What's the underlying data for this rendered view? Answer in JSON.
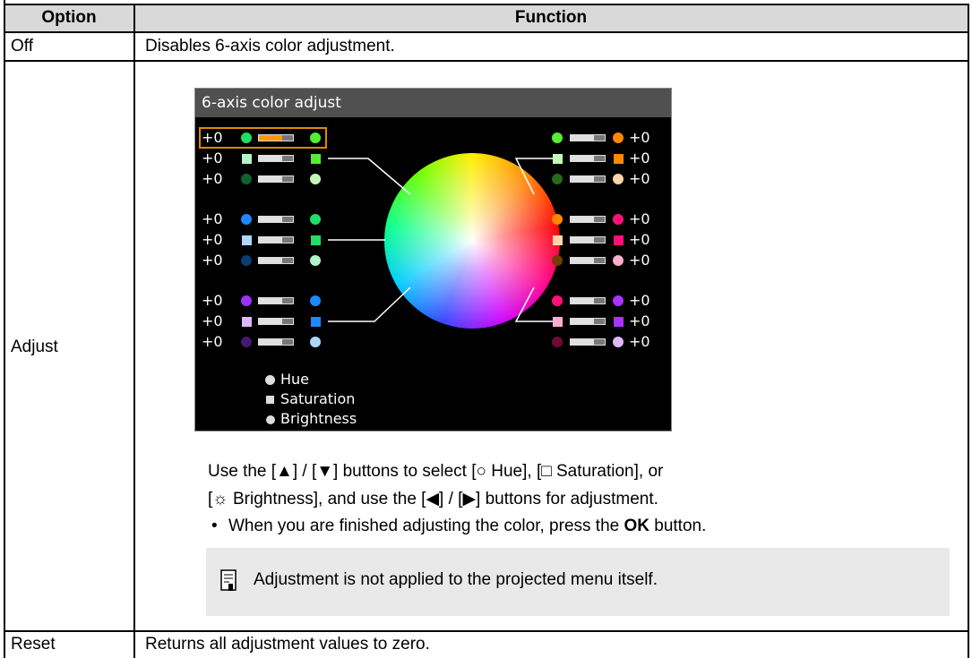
{
  "table": {
    "header": [
      "Option",
      "Function"
    ],
    "rows": [
      {
        "option": "Off",
        "function": "Disables 6-axis color adjustment."
      },
      {
        "option": "Adjust",
        "screen": {
          "title": "6-axis color adjust",
          "left_values": [
            "+0",
            "+0",
            "+0",
            "+0",
            "+0",
            "+0",
            "+0",
            "+0",
            "+0"
          ],
          "right_values": [
            "+0",
            "+0",
            "+0",
            "+0",
            "+0",
            "+0",
            "+0",
            "+0",
            "+0"
          ],
          "legend": [
            "Hue",
            "Saturation",
            "Brightness"
          ]
        },
        "instructions": [
          "Use the [▲] / [▼] buttons to select [○ Hue], [□ Saturation], or",
          "[☼ Brightness], and use the [◀] / [▶] buttons for adjustment."
        ],
        "bullet": {
          "marker": "•",
          "text_before": "When you are finished adjusting the color, press the",
          "bold": "OK",
          "text_after": "button."
        },
        "note": "Adjustment is not applied to the projected menu itself."
      },
      {
        "option": "Reset",
        "function": "Returns all adjustment values to zero."
      }
    ]
  }
}
